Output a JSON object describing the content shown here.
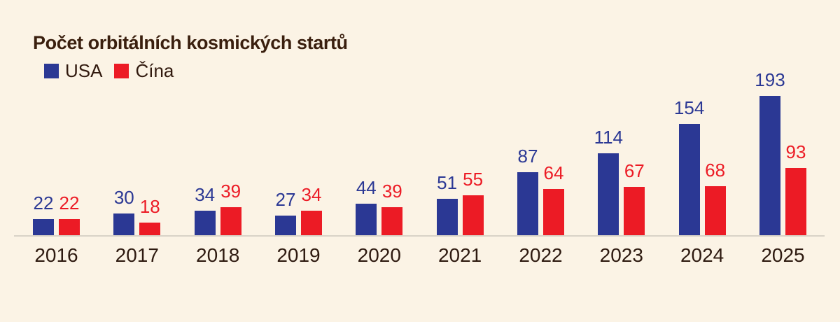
{
  "page": {
    "background_color": "#FBF3E5",
    "title": "Počet orbitálních kosmických startů",
    "title_color": "#3A1F0E"
  },
  "legend": {
    "text_color": "#31190E",
    "items": [
      {
        "label": "USA",
        "color": "#2B3894"
      },
      {
        "label": "Čína",
        "color": "#EC1B25"
      }
    ]
  },
  "chart_data": {
    "type": "bar",
    "title": "Počet orbitálních kosmických startů",
    "categories": [
      "2016",
      "2017",
      "2018",
      "2019",
      "2020",
      "2021",
      "2022",
      "2023",
      "2024",
      "2025"
    ],
    "series": [
      {
        "name": "USA",
        "color": "#2B3894",
        "values": [
          22,
          30,
          34,
          27,
          44,
          51,
          87,
          114,
          154,
          193
        ]
      },
      {
        "name": "Čína",
        "color": "#EC1B25",
        "values": [
          22,
          18,
          39,
          34,
          39,
          55,
          64,
          67,
          68,
          93
        ]
      }
    ],
    "xlabel": "",
    "ylabel": "",
    "ylim": [
      0,
      200
    ],
    "grid": false,
    "legend_position": "top-left",
    "value_labels": true,
    "axis_line_color": "#D9D3C7",
    "category_label_color": "#2E1A10"
  }
}
